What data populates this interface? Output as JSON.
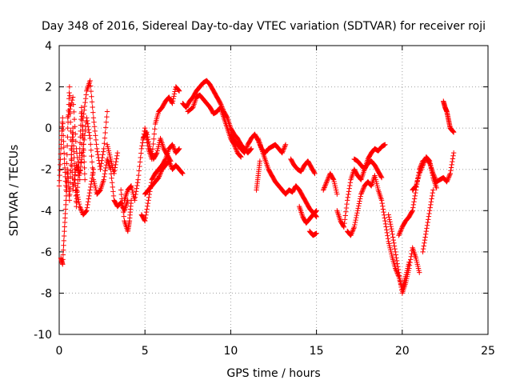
{
  "chart_data": {
    "type": "scatter",
    "title": "Day 348 of 2016, Sidereal Day-to-day VTEC variation (SDTVAR) for receiver roji",
    "xlabel": "GPS time / hours",
    "ylabel": "SDTVAR / TECUs",
    "xlim": [
      0,
      25
    ],
    "ylim": [
      -10,
      4
    ],
    "xticks": [
      "0",
      "5",
      "10",
      "15",
      "20",
      "25"
    ],
    "yticks": [
      "4",
      "2",
      "0",
      "-2",
      "-4",
      "-6",
      "-8",
      "-10"
    ],
    "grid": true,
    "marker": "+",
    "series": [
      {
        "name": "SDTVAR",
        "color": "#ff0000",
        "tracks": [
          {
            "x": [
              0.0,
              0.1,
              0.2,
              0.3,
              0.4,
              0.5,
              0.6,
              0.7,
              0.8,
              1.0,
              1.2,
              1.4,
              1.6,
              1.8,
              2.0,
              2.2,
              2.4,
              2.6,
              2.8,
              3.0,
              3.2,
              3.4,
              3.6,
              3.8,
              4.0
            ],
            "y": [
              -2.8,
              -1.0,
              0.5,
              -1.5,
              -3.0,
              0.0,
              2.0,
              -1.0,
              -3.0,
              -1.8,
              -2.2,
              -1.0,
              0.5,
              -0.5,
              -2.5,
              -3.2,
              -3.0,
              -2.5,
              -1.5,
              -2.0,
              -3.5,
              -3.8,
              -3.6,
              -4.0,
              -3.5
            ]
          },
          {
            "x": [
              0.1,
              0.2,
              0.3,
              0.4,
              0.5,
              0.6,
              0.7,
              0.8,
              0.9,
              1.0,
              1.1,
              1.2,
              1.3,
              1.4,
              1.5
            ],
            "y": [
              -6.3,
              -6.6,
              -5.0,
              -3.5,
              -2.0,
              -3.5,
              -1.5,
              0.0,
              -2.0,
              -3.8,
              -2.5,
              -1.0,
              1.0,
              -0.5,
              -2.5
            ]
          },
          {
            "x": [
              0.5,
              0.8,
              1.0,
              1.2,
              1.4,
              1.6,
              1.8,
              2.0,
              2.2,
              2.4,
              2.6,
              2.8
            ],
            "y": [
              0.5,
              1.5,
              -1.0,
              -2.5,
              0.5,
              1.8,
              2.3,
              0.5,
              -1.0,
              -2.0,
              -1.0,
              0.8
            ]
          },
          {
            "x": [
              1.0,
              1.2,
              1.4,
              1.6,
              1.8,
              2.0
            ],
            "y": [
              -3.0,
              -3.8,
              -4.2,
              -4.0,
              -3.0,
              -2.0
            ]
          },
          {
            "x": [
              2.8,
              3.0,
              3.2,
              3.4
            ],
            "y": [
              -0.8,
              -1.5,
              -2.2,
              -1.2
            ]
          },
          {
            "x": [
              3.6,
              3.8,
              4.0,
              4.1,
              4.2
            ],
            "y": [
              -3.0,
              -4.5,
              -5.0,
              -4.5,
              -3.5
            ]
          },
          {
            "x": [
              3.8,
              4.0,
              4.2,
              4.4,
              4.6,
              4.8,
              5.0,
              5.2,
              5.4,
              5.6,
              5.8,
              6.0,
              6.2,
              6.4,
              6.6,
              6.8,
              7.0
            ],
            "y": [
              -3.5,
              -3.0,
              -2.8,
              -3.5,
              -2.5,
              -1.0,
              0.0,
              -1.0,
              -1.5,
              0.2,
              0.8,
              1.0,
              1.3,
              1.5,
              1.2,
              2.0,
              1.8
            ]
          },
          {
            "x": [
              4.8,
              5.0,
              5.2,
              5.4,
              5.6,
              5.8,
              6.0,
              6.2,
              6.4,
              6.6,
              6.8,
              7.0
            ],
            "y": [
              -4.2,
              -4.5,
              -3.5,
              -2.5,
              -2.2,
              -2.0,
              -1.8,
              -1.5,
              -1.0,
              -0.8,
              -1.2,
              -1.0
            ]
          },
          {
            "x": [
              5.0,
              5.2,
              5.4,
              5.6,
              5.8,
              6.0,
              6.2,
              6.4,
              6.6,
              6.8,
              7.0,
              7.2
            ],
            "y": [
              -3.2,
              -3.0,
              -2.8,
              -2.6,
              -2.4,
              -2.0,
              -1.8,
              -1.6,
              -2.0,
              -1.8,
              -2.0,
              -2.2
            ]
          },
          {
            "x": [
              4.9,
              5.1,
              5.3,
              5.5,
              5.7,
              5.9,
              6.1,
              6.3,
              6.5
            ],
            "y": [
              -0.5,
              -0.2,
              -1.0,
              -1.5,
              -1.2,
              -0.5,
              -1.0,
              -1.3,
              -1.6
            ]
          },
          {
            "x": [
              7.2,
              7.4,
              7.6,
              7.8,
              8.0,
              8.2,
              8.4,
              8.6,
              8.8,
              9.0,
              9.2,
              9.4,
              9.6,
              9.8,
              10.0,
              10.2,
              10.4,
              10.6,
              10.8,
              11.0,
              11.2
            ],
            "y": [
              1.2,
              1.0,
              1.3,
              1.5,
              1.8,
              2.0,
              2.2,
              2.3,
              2.1,
              1.8,
              1.5,
              1.2,
              0.8,
              0.5,
              0.0,
              -0.3,
              -0.5,
              -0.8,
              -1.0,
              -1.2,
              -1.0
            ]
          },
          {
            "x": [
              7.5,
              7.8,
              8.0,
              8.2,
              8.4,
              8.6,
              8.8,
              9.0,
              9.2,
              9.4,
              9.6,
              9.8,
              10.0,
              10.2,
              10.4,
              10.6
            ],
            "y": [
              0.8,
              1.0,
              1.5,
              1.6,
              1.4,
              1.2,
              1.0,
              0.7,
              0.8,
              1.0,
              0.5,
              0.0,
              -0.5,
              -0.8,
              -1.2,
              -1.4
            ]
          },
          {
            "x": [
              10.0,
              10.2,
              10.4,
              10.6,
              10.8,
              11.0,
              11.2,
              11.4,
              11.6,
              11.8,
              12.0,
              12.2,
              12.4,
              12.6,
              12.8,
              13.0,
              13.2
            ],
            "y": [
              -0.3,
              -0.6,
              -0.8,
              -1.0,
              -1.2,
              -0.8,
              -0.5,
              -0.3,
              -0.6,
              -1.0,
              -1.2,
              -1.0,
              -0.9,
              -0.8,
              -1.0,
              -1.2,
              -0.8
            ]
          },
          {
            "x": [
              11.6,
              11.8,
              12.0,
              12.2,
              12.4,
              12.6,
              12.8,
              13.0,
              13.2,
              13.4,
              13.6,
              13.8,
              14.0,
              14.2,
              14.4,
              14.6,
              14.8,
              15.0
            ],
            "y": [
              -0.5,
              -1.0,
              -1.5,
              -2.0,
              -2.3,
              -2.6,
              -2.8,
              -3.0,
              -3.2,
              -3.0,
              -3.1,
              -2.8,
              -3.0,
              -3.3,
              -3.6,
              -3.9,
              -4.1,
              -4.3
            ]
          },
          {
            "x": [
              11.5,
              11.6,
              11.7
            ],
            "y": [
              -3.0,
              -2.3,
              -1.6
            ]
          },
          {
            "x": [
              13.5,
              13.7,
              13.9,
              14.1,
              14.3,
              14.5,
              14.7,
              14.9
            ],
            "y": [
              -1.5,
              -1.8,
              -2.0,
              -2.1,
              -1.8,
              -1.6,
              -1.9,
              -2.2
            ]
          },
          {
            "x": [
              14.0,
              14.2,
              14.4,
              14.6,
              14.8,
              15.0
            ],
            "y": [
              -3.8,
              -4.3,
              -4.6,
              -4.4,
              -4.2,
              -4.0
            ]
          },
          {
            "x": [
              14.6,
              14.8,
              15.0
            ],
            "y": [
              -5.0,
              -5.2,
              -5.1
            ]
          },
          {
            "x": [
              15.4,
              15.6,
              15.8,
              16.0,
              16.2
            ],
            "y": [
              -3.0,
              -2.6,
              -2.2,
              -2.5,
              -3.2
            ]
          },
          {
            "x": [
              16.2,
              16.4,
              16.6,
              16.8,
              17.0,
              17.2,
              17.4,
              17.6,
              17.8,
              18.0,
              18.2,
              18.4,
              18.6,
              18.8,
              19.0
            ],
            "y": [
              -4.0,
              -4.5,
              -4.8,
              -3.5,
              -2.5,
              -2.0,
              -2.3,
              -2.5,
              -2.0,
              -1.5,
              -1.2,
              -1.0,
              -1.1,
              -0.9,
              -0.8
            ]
          },
          {
            "x": [
              16.8,
              17.0,
              17.2,
              17.4,
              17.6,
              17.8,
              18.0,
              18.2,
              18.4,
              18.6,
              18.8,
              19.0,
              19.2,
              19.4,
              19.6,
              19.8,
              20.0,
              20.2,
              20.4
            ],
            "y": [
              -5.0,
              -5.2,
              -4.8,
              -4.0,
              -3.2,
              -2.8,
              -2.6,
              -2.8,
              -2.3,
              -3.0,
              -3.5,
              -4.5,
              -5.5,
              -6.2,
              -6.8,
              -7.2,
              -7.8,
              -7.2,
              -6.5
            ]
          },
          {
            "x": [
              17.2,
              17.4,
              17.6,
              17.8,
              18.0,
              18.2,
              18.4,
              18.6,
              18.8
            ],
            "y": [
              -1.5,
              -1.6,
              -1.8,
              -2.0,
              -1.7,
              -1.6,
              -1.8,
              -2.1,
              -2.4
            ]
          },
          {
            "x": [
              19.2,
              19.4,
              19.6,
              19.8,
              20.0,
              20.2,
              20.4,
              20.6,
              20.8,
              21.0
            ],
            "y": [
              -4.2,
              -5.0,
              -6.0,
              -7.0,
              -8.0,
              -7.5,
              -6.8,
              -5.8,
              -6.3,
              -7.0
            ]
          },
          {
            "x": [
              19.8,
              20.0,
              20.2,
              20.4,
              20.6,
              20.8,
              21.0,
              21.2,
              21.4,
              21.6,
              21.8,
              22.0,
              22.2,
              22.4,
              22.6,
              22.8,
              23.0
            ],
            "y": [
              -5.2,
              -4.8,
              -4.5,
              -4.3,
              -4.0,
              -3.0,
              -2.0,
              -1.6,
              -1.5,
              -1.7,
              -2.2,
              -2.6,
              -2.5,
              -2.4,
              -2.6,
              -2.2,
              -1.2
            ]
          },
          {
            "x": [
              20.6,
              20.8,
              21.0,
              21.2,
              21.4,
              21.6,
              21.8,
              22.0
            ],
            "y": [
              -3.0,
              -2.8,
              -2.2,
              -1.8,
              -1.4,
              -1.6,
              -2.4,
              -2.9
            ]
          },
          {
            "x": [
              21.2,
              21.4,
              21.6,
              21.8
            ],
            "y": [
              -6.0,
              -5.0,
              -4.0,
              -3.0
            ]
          },
          {
            "x": [
              22.4,
              22.5,
              22.6,
              22.7,
              22.8,
              22.9,
              23.0
            ],
            "y": [
              1.3,
              1.0,
              0.8,
              0.4,
              0.0,
              -0.1,
              -0.2
            ]
          }
        ]
      }
    ]
  }
}
